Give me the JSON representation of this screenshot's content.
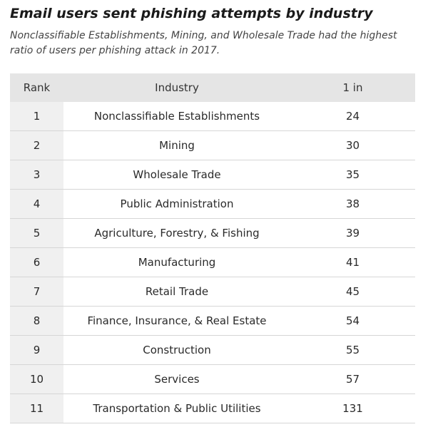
{
  "title": "Email users sent phishing attempts by industry",
  "subtitle": "Nonclassifiable Establishments, Mining, and Wholesale Trade had the highest ratio of users per phishing attack in 2017.",
  "chart_data": {
    "type": "table",
    "columns": [
      "Rank",
      "Industry",
      "1 in"
    ],
    "rows": [
      {
        "rank": "1",
        "industry": "Nonclassifiable Establishments",
        "value": "24"
      },
      {
        "rank": "2",
        "industry": "Mining",
        "value": "30"
      },
      {
        "rank": "3",
        "industry": "Wholesale Trade",
        "value": "35"
      },
      {
        "rank": "4",
        "industry": "Public Administration",
        "value": "38"
      },
      {
        "rank": "5",
        "industry": "Agriculture, Forestry, & Fishing",
        "value": "39"
      },
      {
        "rank": "6",
        "industry": "Manufacturing",
        "value": "41"
      },
      {
        "rank": "7",
        "industry": "Retail Trade",
        "value": "45"
      },
      {
        "rank": "8",
        "industry": "Finance, Insurance, & Real Estate",
        "value": "54"
      },
      {
        "rank": "9",
        "industry": "Construction",
        "value": "55"
      },
      {
        "rank": "10",
        "industry": "Services",
        "value": "57"
      },
      {
        "rank": "11",
        "industry": "Transportation & Public Utilities",
        "value": "131"
      }
    ]
  }
}
